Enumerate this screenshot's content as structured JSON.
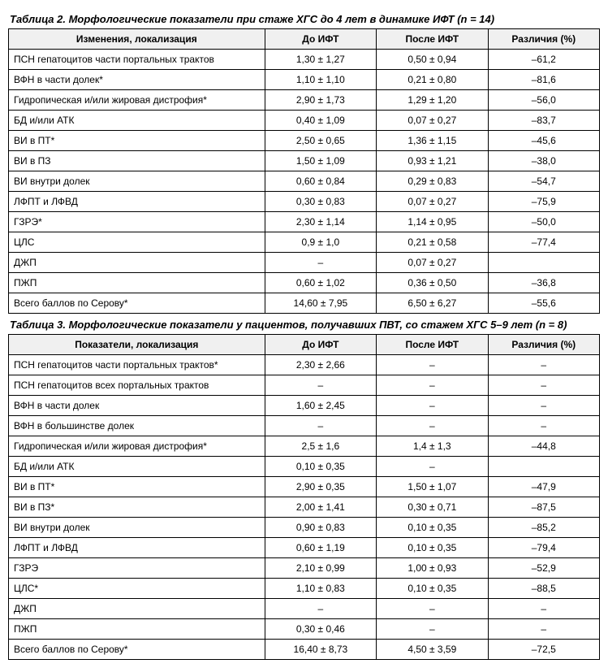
{
  "table2": {
    "title": "Таблица 2. Морфологические показатели при стаже ХГС до 4 лет в динамике ИФТ (n = 14)",
    "headers": [
      "Изменения, локализация",
      "До ИФТ",
      "После ИФТ",
      "Различия (%)"
    ],
    "rows": [
      [
        "ПСН гепатоцитов части портальных трактов",
        "1,30 ± 1,27",
        "0,50 ± 0,94",
        "–61,2"
      ],
      [
        "ВФН в части долек*",
        "1,10 ± 1,10",
        "0,21 ± 0,80",
        "–81,6"
      ],
      [
        "Гидропическая и/или жировая дистрофия*",
        "2,90 ± 1,73",
        "1,29 ± 1,20",
        "–56,0"
      ],
      [
        "БД и/или АТК",
        "0,40 ± 1,09",
        "0,07 ± 0,27",
        "–83,7"
      ],
      [
        "ВИ в ПТ*",
        "2,50 ± 0,65",
        "1,36 ± 1,15",
        "–45,6"
      ],
      [
        "ВИ в ПЗ",
        "1,50 ± 1,09",
        "0,93 ± 1,21",
        "–38,0"
      ],
      [
        "ВИ внутри долек",
        "0,60 ± 0,84",
        "0,29 ± 0,83",
        "–54,7"
      ],
      [
        "ЛФПТ и ЛФВД",
        "0,30 ± 0,83",
        "0,07 ± 0,27",
        "–75,9"
      ],
      [
        "ГЗРЭ*",
        "2,30 ± 1,14",
        "1,14 ± 0,95",
        "–50,0"
      ],
      [
        "ЦЛС",
        "0,9 ± 1,0",
        "0,21 ± 0,58",
        "–77,4"
      ],
      [
        "ДЖП",
        "–",
        "0,07 ± 0,27",
        ""
      ],
      [
        "ПЖП",
        "0,60 ± 1,02",
        "0,36 ± 0,50",
        "–36,8"
      ],
      [
        "Всего баллов по Серову*",
        "14,60 ± 7,95",
        "6,50 ± 6,27",
        "–55,6"
      ]
    ]
  },
  "table3": {
    "title": "Таблица 3. Морфологические показатели у пациентов, получавших ПВТ, со стажем ХГС 5–9 лет (n = 8)",
    "headers": [
      "Показатели, локализация",
      "До ИФТ",
      "После ИФТ",
      "Различия (%)"
    ],
    "rows": [
      [
        "ПСН гепатоцитов части портальных трактов*",
        "2,30 ± 2,66",
        "–",
        "–"
      ],
      [
        "ПСН гепатоцитов всех портальных трактов",
        "–",
        "–",
        "–"
      ],
      [
        "ВФН в части долек",
        "1,60 ± 2,45",
        "–",
        "–"
      ],
      [
        "ВФН в большинстве долек",
        "–",
        "–",
        "–"
      ],
      [
        "Гидропическая и/или жировая дистрофия*",
        "2,5 ± 1,6",
        "1,4 ± 1,3",
        "–44,8"
      ],
      [
        "БД и/или АТК",
        "0,10 ± 0,35",
        "–",
        ""
      ],
      [
        "ВИ в ПТ*",
        "2,90 ± 0,35",
        "1,50 ± 1,07",
        "–47,9"
      ],
      [
        "ВИ в ПЗ*",
        "2,00 ± 1,41",
        "0,30 ± 0,71",
        "–87,5"
      ],
      [
        "ВИ внутри долек",
        "0,90 ± 0,83",
        "0,10 ± 0,35",
        "–85,2"
      ],
      [
        "ЛФПТ и ЛФВД",
        "0,60 ± 1,19",
        "0,10 ± 0,35",
        "–79,4"
      ],
      [
        "ГЗРЭ",
        "2,10 ± 0,99",
        "1,00 ± 0,93",
        "–52,9"
      ],
      [
        "ЦЛС*",
        "1,10 ± 0,83",
        "0,10 ± 0,35",
        "–88,5"
      ],
      [
        "ДЖП",
        "–",
        "–",
        "–"
      ],
      [
        "ПЖП",
        "0,30 ± 0,46",
        "–",
        "–"
      ],
      [
        "Всего баллов по Серову*",
        "16,40 ± 8,73",
        "4,50 ± 3,59",
        "–72,5"
      ]
    ]
  }
}
